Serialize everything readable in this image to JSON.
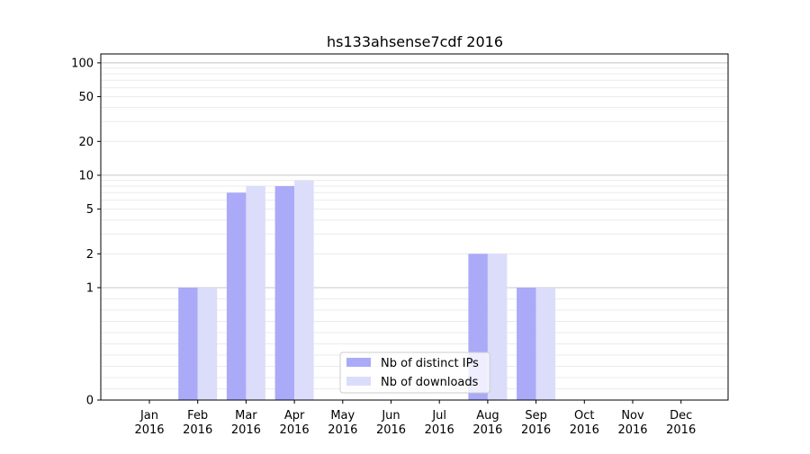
{
  "chart_data": {
    "type": "bar",
    "title": "hs133ahsense7cdf 2016",
    "xlabel": "",
    "ylabel": "",
    "y_scale": "symlog",
    "categories": [
      {
        "month": "Jan",
        "year": "2016"
      },
      {
        "month": "Feb",
        "year": "2016"
      },
      {
        "month": "Mar",
        "year": "2016"
      },
      {
        "month": "Apr",
        "year": "2016"
      },
      {
        "month": "May",
        "year": "2016"
      },
      {
        "month": "Jun",
        "year": "2016"
      },
      {
        "month": "Jul",
        "year": "2016"
      },
      {
        "month": "Aug",
        "year": "2016"
      },
      {
        "month": "Sep",
        "year": "2016"
      },
      {
        "month": "Oct",
        "year": "2016"
      },
      {
        "month": "Nov",
        "year": "2016"
      },
      {
        "month": "Dec",
        "year": "2016"
      }
    ],
    "series": [
      {
        "name": "Nb of distinct IPs",
        "color": "#aaaaf8",
        "values": [
          0,
          1,
          7,
          8,
          0,
          0,
          0,
          2,
          1,
          0,
          0,
          0
        ]
      },
      {
        "name": "Nb of downloads",
        "color": "#dcdcfb",
        "values": [
          0,
          1,
          8,
          9,
          0,
          0,
          0,
          2,
          1,
          0,
          0,
          0
        ]
      }
    ],
    "yticks": [
      "0",
      "1",
      "2",
      "5",
      "10",
      "20",
      "50",
      "100"
    ],
    "ylim": [
      0,
      120
    ],
    "grid": true,
    "legend_position": "bottom-center"
  }
}
